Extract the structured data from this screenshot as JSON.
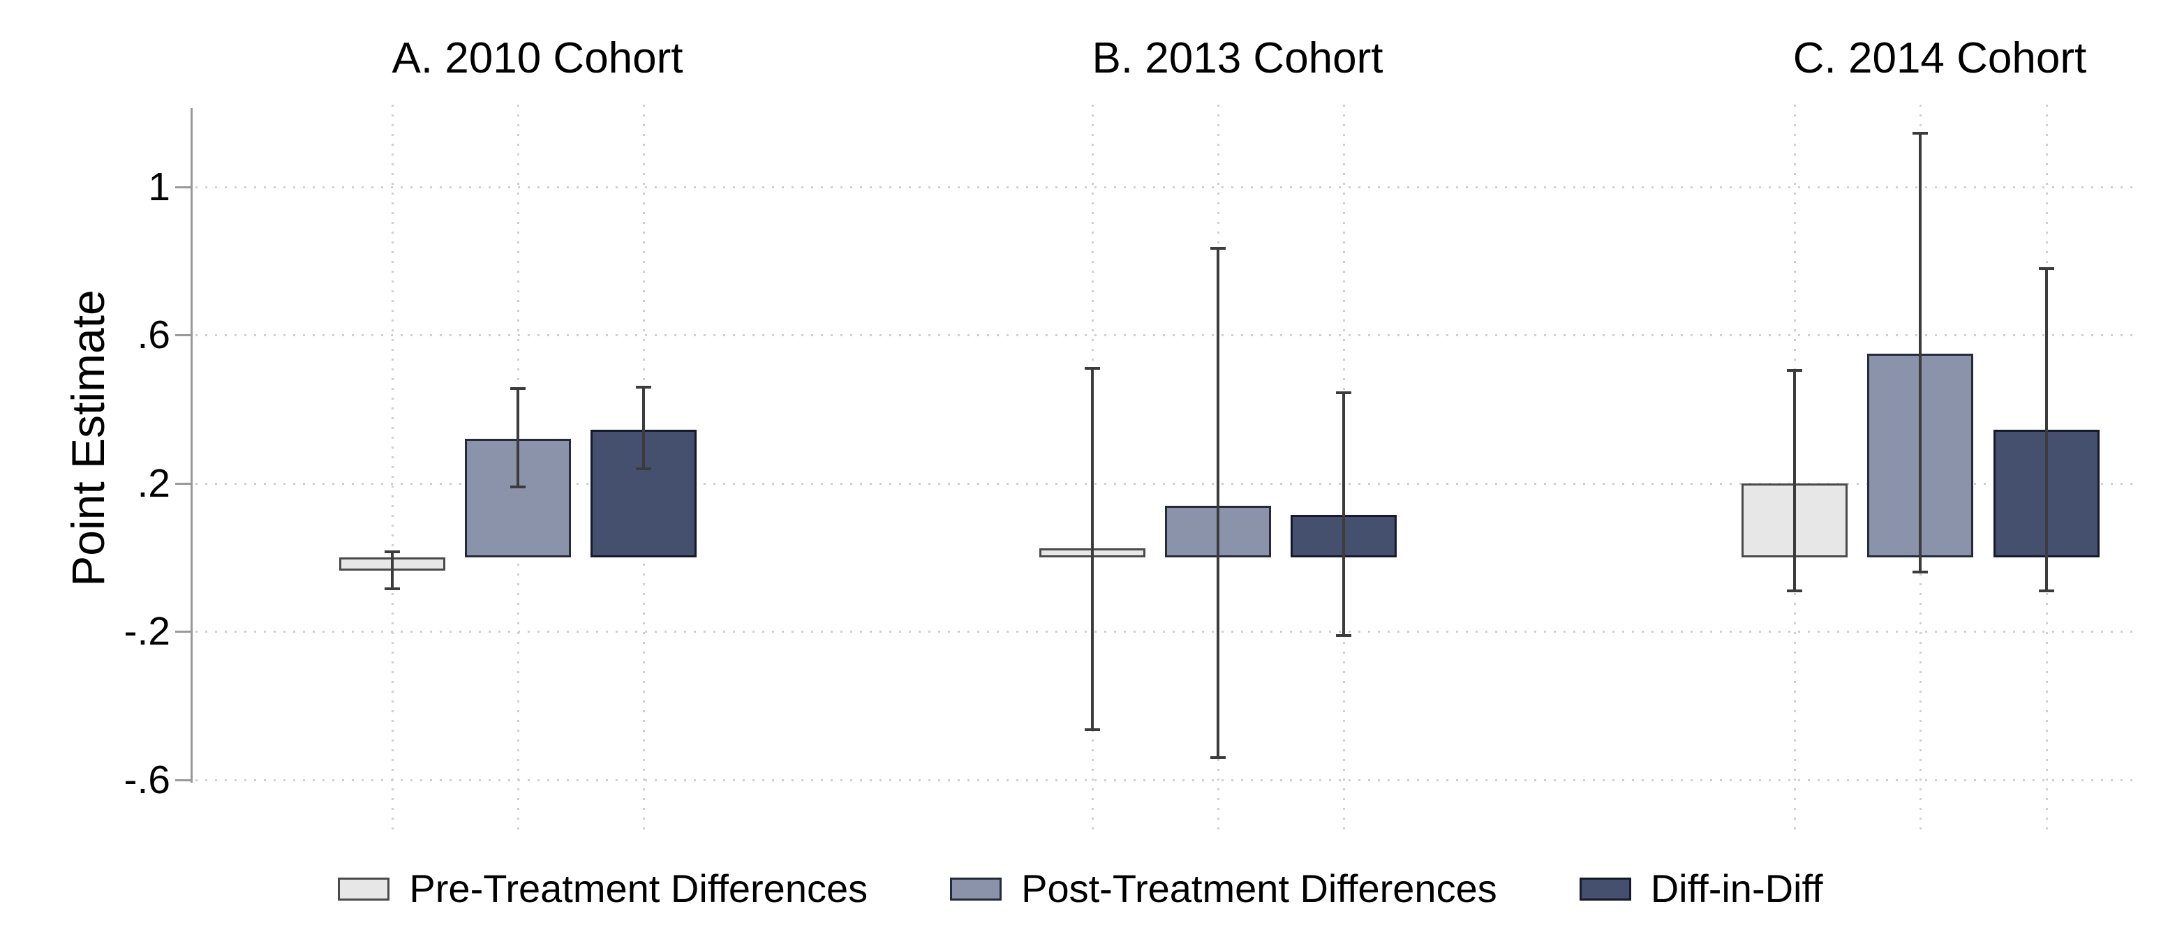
{
  "figure": {
    "background": "#ffffff",
    "axis_color": "#999999",
    "grid_color": "#cfcfcf",
    "error_bar_color": "#3c3c3c"
  },
  "chart_data": {
    "type": "bar",
    "subtype": "grouped bars with 95% CI error bars, three panels, shared y axis",
    "title": "",
    "ylabel": "Point Estimate",
    "xlabel": "",
    "ylim": [
      -0.72,
      1.22
    ],
    "grid": "dotted horizontal lines at y ticks and dotted vertical lines at each bar position",
    "legend_position": "bottom center",
    "y_ticks": [
      {
        "value": 1,
        "label": "1"
      },
      {
        "value": 0.6,
        "label": ".6"
      },
      {
        "value": 0.2,
        "label": ".2"
      },
      {
        "value": -0.2,
        "label": "-.2"
      },
      {
        "value": -0.6,
        "label": "-.6"
      }
    ],
    "series_names": [
      "Pre-Treatment Differences",
      "Post-Treatment Differences",
      "Diff-in-Diff"
    ],
    "series_styles": [
      {
        "name": "Pre-Treatment Differences",
        "fill": "#e7e7e7",
        "border": "#4a4a4a"
      },
      {
        "name": "Post-Treatment Differences",
        "fill": "#8a93a9",
        "border": "#262b3b"
      },
      {
        "name": "Diff-in-Diff",
        "fill": "#44506e",
        "border": "#161a2b"
      }
    ],
    "panels": [
      {
        "title": "A. 2010 Cohort",
        "bars": [
          {
            "series": "Pre-Treatment Differences",
            "estimate": -0.035,
            "ci_low": -0.085,
            "ci_high": 0.015
          },
          {
            "series": "Post-Treatment Differences",
            "estimate": 0.32,
            "ci_low": 0.19,
            "ci_high": 0.455
          },
          {
            "series": "Diff-in-Diff",
            "estimate": 0.345,
            "ci_low": 0.24,
            "ci_high": 0.46
          }
        ]
      },
      {
        "title": "B. 2013 Cohort",
        "bars": [
          {
            "series": "Pre-Treatment Differences",
            "estimate": 0.025,
            "ci_low": -0.465,
            "ci_high": 0.51
          },
          {
            "series": "Post-Treatment Differences",
            "estimate": 0.14,
            "ci_low": -0.54,
            "ci_high": 0.835
          },
          {
            "series": "Diff-in-Diff",
            "estimate": 0.115,
            "ci_low": -0.21,
            "ci_high": 0.445
          }
        ]
      },
      {
        "title": "C. 2014 Cohort",
        "bars": [
          {
            "series": "Pre-Treatment Differences",
            "estimate": 0.2,
            "ci_low": -0.09,
            "ci_high": 0.505
          },
          {
            "series": "Post-Treatment Differences",
            "estimate": 0.55,
            "ci_low": -0.04,
            "ci_high": 1.145
          },
          {
            "series": "Diff-in-Diff",
            "estimate": 0.345,
            "ci_low": -0.09,
            "ci_high": 0.78
          }
        ]
      }
    ]
  },
  "legend": {
    "items": [
      {
        "label": "Pre-Treatment Differences",
        "fill": "#e7e7e7",
        "border": "#4a4a4a"
      },
      {
        "label": "Post-Treatment Differences",
        "fill": "#8a93a9",
        "border": "#262b3b"
      },
      {
        "label": "Diff-in-Diff",
        "fill": "#44506e",
        "border": "#161a2b"
      }
    ]
  }
}
